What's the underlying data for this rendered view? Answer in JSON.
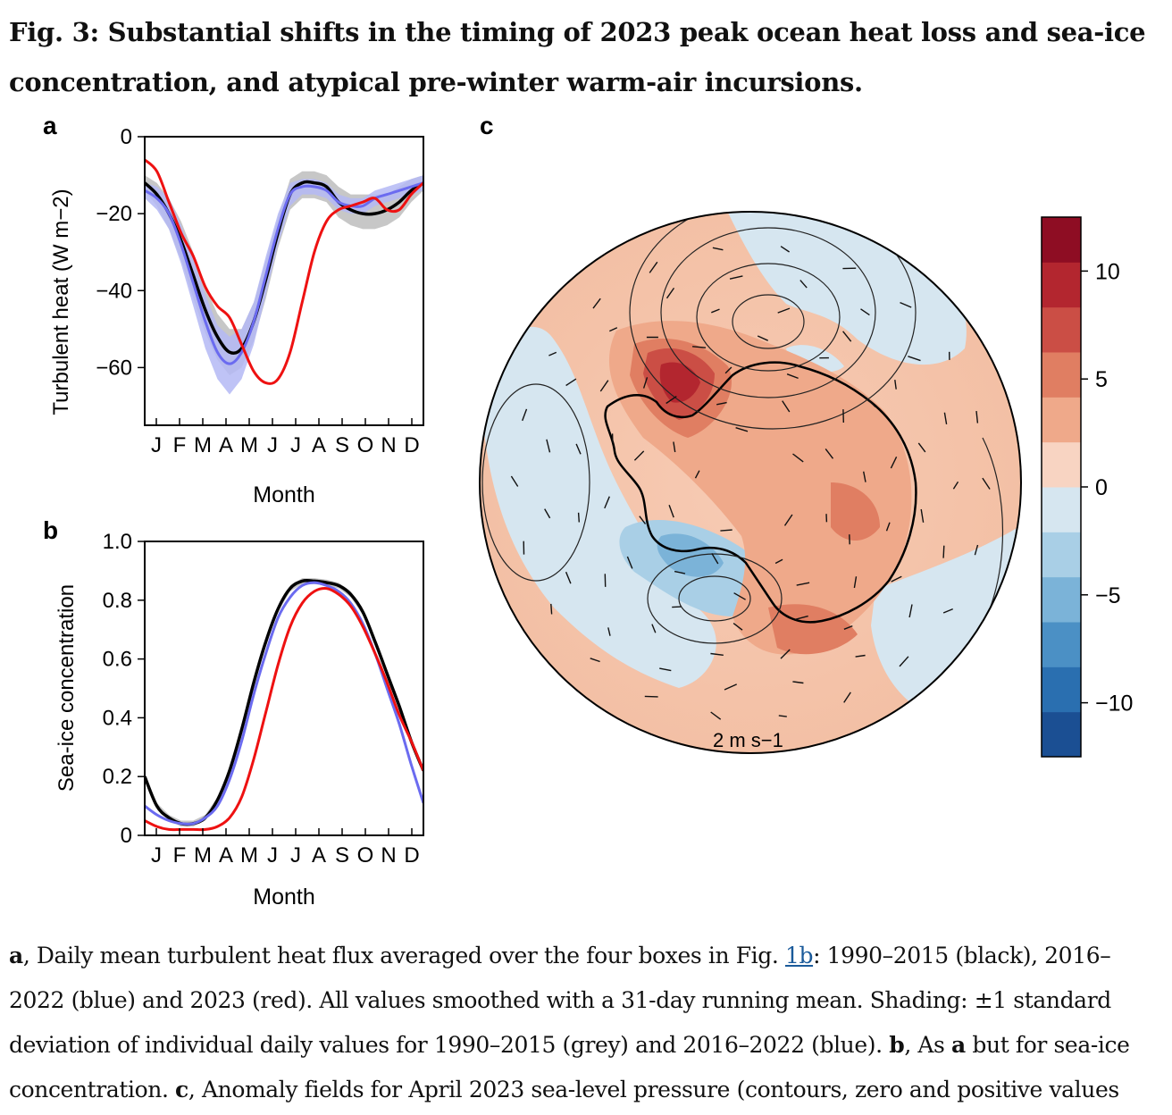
{
  "figure": {
    "title": "Fig. 3: Substantial shifts in the timing of 2023 peak ocean heat loss and sea-ice concentration, and atypical pre-winter warm-air incursions.",
    "caption": {
      "a_label": "a",
      "a_text_1": ", Daily mean turbulent heat flux averaged over the four boxes in Fig. ",
      "fig_link": "1b",
      "a_text_2": ": 1990–2015 (black), 2016–2022 (blue) and 2023 (red). All values smoothed with a 31-day running mean. Shading: ±1 standard deviation of individual daily values for 1990–2015 (grey) and 2016–2022 (blue). ",
      "b_label": "b",
      "b_text_1": ", As ",
      "b_ref": "a",
      "b_text_2": " but for sea-ice concentration. ",
      "c_label": "c",
      "c_text": ", Anomaly fields for April 2023 sea-level pressure (contours, zero and positive values"
    }
  },
  "colors": {
    "black_series": "#000000",
    "blue_series": "#6b6bf0",
    "red_series": "#ee1111",
    "grey_shade": "#bdbdbd",
    "blue_shade": "#b4b8f4"
  },
  "chart_data": [
    {
      "panel": "a",
      "type": "line",
      "xlabel": "Month",
      "ylabel": "Turbulent heat (W m−2)",
      "x_ticks": [
        "J",
        "F",
        "M",
        "A",
        "M",
        "J",
        "J",
        "A",
        "S",
        "O",
        "N",
        "D"
      ],
      "y_ticks": [
        0,
        -20,
        -40,
        -60
      ],
      "ylim": [
        -75,
        0
      ],
      "x": [
        0,
        0.5,
        1,
        1.5,
        2,
        2.5,
        3,
        3.5,
        4,
        4.5,
        5,
        5.5,
        6,
        6.5,
        7,
        7.5,
        8,
        8.5,
        9,
        9.5,
        10,
        10.5,
        11,
        11.5
      ],
      "series": [
        {
          "key": "black",
          "values": [
            -12,
            -15,
            -20,
            -27,
            -36,
            -45,
            -52,
            -56,
            -55,
            -48,
            -37,
            -25,
            -15,
            -12,
            -12,
            -13,
            -17,
            -19,
            -20,
            -20,
            -19,
            -17,
            -14,
            -12
          ]
        },
        {
          "key": "blue",
          "values": [
            -14,
            -16,
            -20,
            -28,
            -38,
            -48,
            -56,
            -59,
            -56,
            -48,
            -36,
            -24,
            -15,
            -13,
            -13,
            -14,
            -17,
            -18,
            -18,
            -16,
            -15,
            -14,
            -13,
            -12
          ]
        },
        {
          "key": "red",
          "values": [
            -6,
            -9,
            -17,
            -25,
            -31,
            -39,
            -44,
            -47,
            -54,
            -61,
            -64,
            -63,
            -56,
            -43,
            -30,
            -22,
            -19,
            -18,
            -17,
            -16,
            -19,
            -19,
            -15,
            -12
          ]
        }
      ],
      "bands": [
        {
          "key": "grey",
          "upper": [
            -10,
            -12,
            -16,
            -22,
            -30,
            -39,
            -46,
            -50,
            -50,
            -43,
            -32,
            -21,
            -11,
            -9,
            -9,
            -10,
            -13,
            -15,
            -15,
            -15,
            -15,
            -13,
            -11,
            -10
          ],
          "lower": [
            -14,
            -18,
            -24,
            -32,
            -42,
            -51,
            -58,
            -62,
            -60,
            -53,
            -42,
            -29,
            -19,
            -16,
            -16,
            -17,
            -21,
            -23,
            -24,
            -24,
            -23,
            -21,
            -17,
            -14
          ]
        },
        {
          "key": "blue",
          "upper": [
            -12,
            -13,
            -16,
            -23,
            -32,
            -41,
            -49,
            -52,
            -50,
            -43,
            -31,
            -20,
            -12,
            -11,
            -11,
            -12,
            -15,
            -16,
            -16,
            -14,
            -13,
            -12,
            -11,
            -10
          ],
          "lower": [
            -16,
            -19,
            -24,
            -33,
            -44,
            -55,
            -63,
            -67,
            -63,
            -54,
            -41,
            -28,
            -18,
            -15,
            -15,
            -16,
            -19,
            -20,
            -20,
            -18,
            -17,
            -16,
            -15,
            -14
          ]
        }
      ]
    },
    {
      "panel": "b",
      "type": "line",
      "xlabel": "Month",
      "ylabel": "Sea-ice concentration",
      "x_ticks": [
        "J",
        "F",
        "M",
        "A",
        "M",
        "J",
        "J",
        "A",
        "S",
        "O",
        "N",
        "D"
      ],
      "y_ticks": [
        1.0,
        0.8,
        0.6,
        0.4,
        0.2,
        0
      ],
      "y_tick_labels": [
        "1.0",
        "0.8",
        "0.6",
        "0.4",
        "0.2",
        "0"
      ],
      "ylim": [
        0,
        1.0
      ],
      "x": [
        0,
        0.5,
        1,
        1.5,
        2,
        2.5,
        3,
        3.5,
        4,
        4.5,
        5,
        5.5,
        6,
        6.5,
        7,
        7.5,
        8,
        8.5,
        9,
        9.5,
        10,
        10.5,
        11,
        11.5
      ],
      "series": [
        {
          "key": "black",
          "values": [
            0.2,
            0.1,
            0.06,
            0.04,
            0.04,
            0.06,
            0.12,
            0.22,
            0.36,
            0.52,
            0.66,
            0.77,
            0.84,
            0.865,
            0.865,
            0.86,
            0.85,
            0.82,
            0.76,
            0.66,
            0.55,
            0.44,
            0.32,
            0.22
          ]
        },
        {
          "key": "blue",
          "values": [
            0.1,
            0.07,
            0.05,
            0.04,
            0.04,
            0.06,
            0.1,
            0.19,
            0.32,
            0.48,
            0.62,
            0.74,
            0.81,
            0.85,
            0.86,
            0.85,
            0.83,
            0.79,
            0.72,
            0.62,
            0.5,
            0.38,
            0.24,
            0.11
          ]
        },
        {
          "key": "red",
          "values": [
            0.05,
            0.03,
            0.02,
            0.02,
            0.02,
            0.02,
            0.03,
            0.06,
            0.13,
            0.26,
            0.42,
            0.58,
            0.71,
            0.79,
            0.83,
            0.84,
            0.82,
            0.78,
            0.71,
            0.62,
            0.52,
            0.41,
            0.32,
            0.22
          ]
        }
      ],
      "bands": [
        {
          "key": "grey",
          "upper": [
            0.21,
            0.11,
            0.07,
            0.05,
            0.05,
            0.07,
            0.13,
            0.23,
            0.37,
            0.53,
            0.67,
            0.78,
            0.85,
            0.875,
            0.875,
            0.87,
            0.86,
            0.83,
            0.77,
            0.67,
            0.56,
            0.45,
            0.33,
            0.23
          ],
          "lower": [
            0.19,
            0.09,
            0.05,
            0.03,
            0.03,
            0.05,
            0.11,
            0.21,
            0.35,
            0.51,
            0.65,
            0.76,
            0.83,
            0.855,
            0.855,
            0.85,
            0.84,
            0.81,
            0.75,
            0.65,
            0.54,
            0.43,
            0.31,
            0.21
          ]
        }
      ]
    },
    {
      "panel": "c",
      "type": "heatmap",
      "projection": "south polar stereographic",
      "colorbar_ticks": [
        10,
        5,
        0,
        -5,
        -10
      ],
      "colorbar_tick_labels": [
        "10",
        "5",
        "0",
        "−5",
        "−10"
      ],
      "colorbar_range": [
        -12.5,
        12.5
      ],
      "colorbar_colors": [
        "#1b4f93",
        "#2a6fb0",
        "#4b90c5",
        "#7bb3d8",
        "#a9cfe6",
        "#d6e6f0",
        "#f8d4c2",
        "#efa98a",
        "#e07e62",
        "#cb4e45",
        "#b3262f",
        "#8e0d23"
      ],
      "vector_scale_label": "2 m s−1"
    }
  ]
}
